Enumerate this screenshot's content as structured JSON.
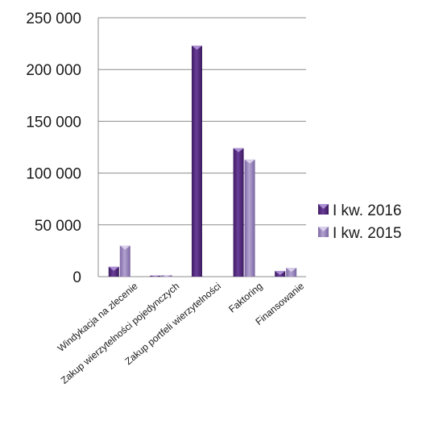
{
  "chart_data": {
    "type": "bar",
    "categories": [
      "Windykacja na zlecenie",
      "Zakup wierzytelności pojedynczych",
      "Zakup portfeli wierzytelności",
      "Faktoring",
      "Finansowanie"
    ],
    "series": [
      {
        "name": "I kw. 2016",
        "values": [
          9500,
          1000,
          223000,
          124000,
          5500
        ],
        "color": "#5a2e84"
      },
      {
        "name": "I kw. 2015",
        "values": [
          30000,
          1500,
          0,
          113000,
          8500
        ],
        "color": "#9b86bc"
      }
    ],
    "y_ticks": [
      "0",
      "50 000",
      "100 000",
      "150 000",
      "200 000",
      "250 000"
    ],
    "ylim": [
      0,
      250000
    ],
    "grid": true,
    "legend_position": "right"
  }
}
